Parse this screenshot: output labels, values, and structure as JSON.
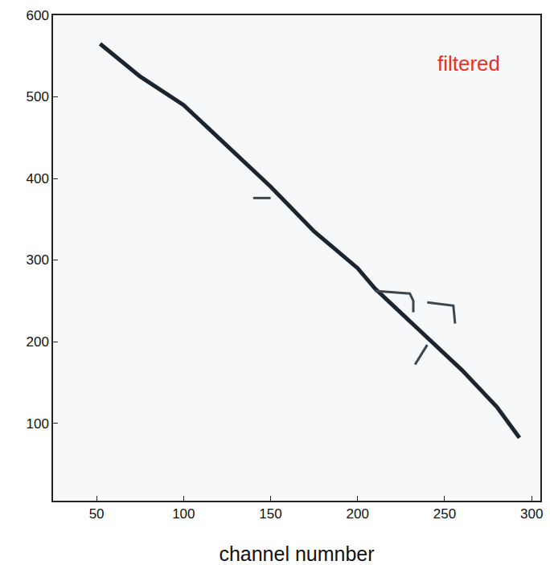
{
  "chart_data": {
    "type": "line",
    "x_label": "channel numnber",
    "annotations": [
      {
        "text": "filtered",
        "color": "#e8312a"
      }
    ],
    "xlim": [
      25,
      305
    ],
    "xticks": [
      50,
      100,
      150,
      200,
      250,
      300
    ],
    "ylim": [
      5,
      600
    ],
    "yticks": [
      100,
      200,
      300,
      400,
      500,
      600
    ],
    "grid": false,
    "series": [
      {
        "color": "#1a2530",
        "x": [
          52,
          75,
          100,
          125,
          150,
          175,
          200,
          210,
          225,
          240,
          260,
          280,
          293
        ],
        "values": [
          565,
          525,
          490,
          440,
          390,
          335,
          290,
          265,
          235,
          205,
          165,
          120,
          82
        ]
      },
      {
        "color": "#3a4650",
        "x": [
          140,
          150
        ],
        "values": [
          376,
          376
        ]
      },
      {
        "color": "#3a4650",
        "x": [
          210,
          230,
          232,
          232
        ],
        "values": [
          262,
          259,
          250,
          236
        ]
      },
      {
        "color": "#3a4650",
        "x": [
          240,
          255,
          256
        ],
        "values": [
          248,
          244,
          222
        ]
      },
      {
        "color": "#3a4650",
        "x": [
          233,
          240
        ],
        "values": [
          172,
          196
        ]
      }
    ]
  }
}
